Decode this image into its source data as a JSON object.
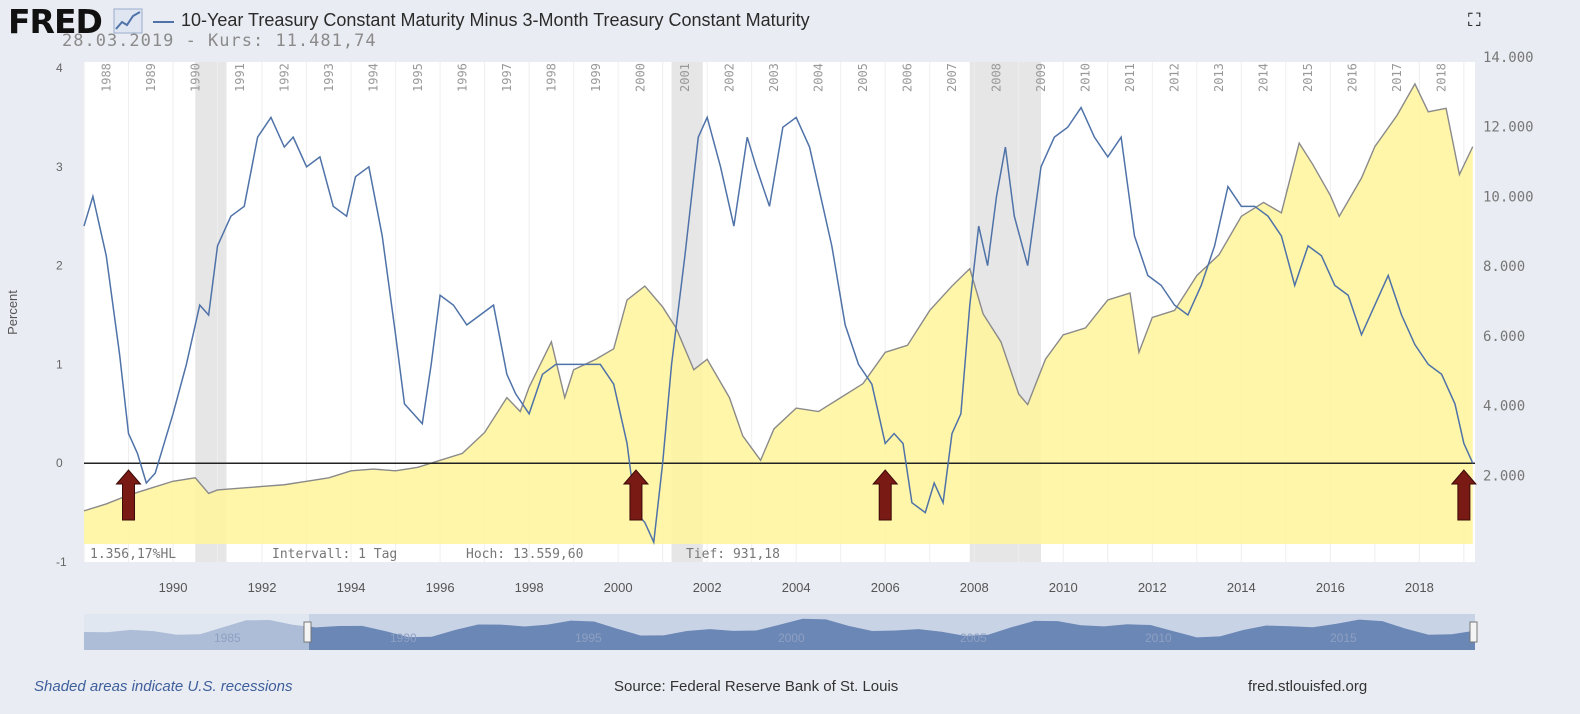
{
  "header": {
    "logo": "FRED",
    "logo_icon": "chart-trend-icon",
    "title": "10-Year Treasury Constant Maturity Minus 3-Month Treasury Constant Maturity",
    "overlay": "28.03.2019 - Kurs: 11.481,74",
    "expand_icon": "expand-icon"
  },
  "footer": {
    "left": "Shaded areas indicate U.S. recessions",
    "source": "Source: Federal Reserve Bank of St. Louis",
    "url": "fred.stlouisfed.org"
  },
  "colors": {
    "spread_line": "#4f72a8",
    "index_fill": "#fff59a",
    "index_line": "#8a8a8a",
    "arrow": "#7a1a14",
    "recession": "#e6e6e6"
  },
  "chart_data": {
    "type": "line",
    "title": "10-Year Treasury Constant Maturity Minus 3-Month Treasury Constant Maturity",
    "ylabel": "Percent",
    "ylim": [
      -1,
      4
    ],
    "y_ticks": [
      "4",
      "3",
      "2",
      "1",
      "0",
      "-1"
    ],
    "xlim": [
      1988.0,
      2019.25
    ],
    "x_ticks": [
      "1990",
      "1992",
      "1994",
      "1996",
      "1998",
      "2000",
      "2002",
      "2004",
      "2006",
      "2008",
      "2010",
      "2012",
      "2014",
      "2016",
      "2018"
    ],
    "top_year_labels": [
      "1988",
      "1989",
      "1990",
      "1991",
      "1992",
      "1993",
      "1994",
      "1995",
      "1996",
      "1997",
      "1998",
      "1999",
      "2000",
      "2001",
      "2002",
      "2003",
      "2004",
      "2005",
      "2006",
      "2007",
      "2008",
      "2009",
      "2010",
      "2011",
      "2012",
      "2013",
      "2014",
      "2015",
      "2016",
      "2017",
      "2018"
    ],
    "right_axis": {
      "ylim": [
        0,
        14000
      ],
      "ticks": [
        "14.000",
        "12.000",
        "10.000",
        "8.000",
        "6.000",
        "4.000",
        "2.000"
      ]
    },
    "recessions": [
      [
        1990.5,
        1991.2
      ],
      [
        2001.2,
        2001.9
      ],
      [
        2007.9,
        2009.5
      ]
    ],
    "series": [
      {
        "name": "10-Year Treasury Constant Maturity Minus 3-Month Treasury Constant Maturity",
        "axis": "left",
        "x": [
          1988.0,
          1988.2,
          1988.5,
          1988.8,
          1989.0,
          1989.2,
          1989.4,
          1989.6,
          1989.8,
          1990.0,
          1990.3,
          1990.6,
          1990.8,
          1991.0,
          1991.3,
          1991.6,
          1991.9,
          1992.2,
          1992.5,
          1992.7,
          1993.0,
          1993.3,
          1993.6,
          1993.9,
          1994.1,
          1994.4,
          1994.7,
          1995.0,
          1995.2,
          1995.4,
          1995.6,
          1995.8,
          1996.0,
          1996.3,
          1996.6,
          1996.9,
          1997.2,
          1997.5,
          1997.7,
          1998.0,
          1998.3,
          1998.6,
          1998.8,
          1999.0,
          1999.3,
          1999.6,
          1999.9,
          2000.2,
          2000.4,
          2000.6,
          2000.8,
          2001.0,
          2001.2,
          2001.5,
          2001.8,
          2002.0,
          2002.3,
          2002.6,
          2002.9,
          2003.1,
          2003.4,
          2003.7,
          2004.0,
          2004.3,
          2004.5,
          2004.8,
          2005.1,
          2005.4,
          2005.7,
          2006.0,
          2006.2,
          2006.4,
          2006.6,
          2006.9,
          2007.1,
          2007.3,
          2007.5,
          2007.7,
          2007.9,
          2008.1,
          2008.3,
          2008.5,
          2008.7,
          2008.9,
          2009.2,
          2009.5,
          2009.8,
          2010.1,
          2010.4,
          2010.7,
          2011.0,
          2011.3,
          2011.6,
          2011.9,
          2012.2,
          2012.5,
          2012.8,
          2013.1,
          2013.4,
          2013.7,
          2014.0,
          2014.3,
          2014.6,
          2014.9,
          2015.2,
          2015.5,
          2015.8,
          2016.1,
          2016.4,
          2016.7,
          2017.0,
          2017.3,
          2017.6,
          2017.9,
          2018.2,
          2018.5,
          2018.8,
          2019.0,
          2019.2
        ],
        "y": [
          2.4,
          2.7,
          2.1,
          1.1,
          0.3,
          0.1,
          -0.2,
          -0.1,
          0.2,
          0.5,
          1.0,
          1.6,
          1.5,
          2.2,
          2.5,
          2.6,
          3.3,
          3.5,
          3.2,
          3.3,
          3.0,
          3.1,
          2.6,
          2.5,
          2.9,
          3.0,
          2.3,
          1.3,
          0.6,
          0.5,
          0.4,
          1.0,
          1.7,
          1.6,
          1.4,
          1.5,
          1.6,
          0.9,
          0.7,
          0.5,
          0.9,
          1.0,
          1.0,
          1.0,
          1.0,
          1.0,
          0.8,
          0.2,
          -0.5,
          -0.6,
          -0.8,
          0.0,
          1.0,
          2.1,
          3.3,
          3.5,
          3.0,
          2.4,
          3.3,
          3.0,
          2.6,
          3.4,
          3.5,
          3.2,
          2.8,
          2.2,
          1.4,
          1.0,
          0.8,
          0.2,
          0.3,
          0.2,
          -0.4,
          -0.5,
          -0.2,
          -0.4,
          0.3,
          0.5,
          1.6,
          2.4,
          2.0,
          2.7,
          3.2,
          2.5,
          2.0,
          3.0,
          3.3,
          3.4,
          3.6,
          3.3,
          3.1,
          3.3,
          2.3,
          1.9,
          1.8,
          1.6,
          1.5,
          1.8,
          2.2,
          2.8,
          2.6,
          2.6,
          2.5,
          2.3,
          1.8,
          2.2,
          2.1,
          1.8,
          1.7,
          1.3,
          1.6,
          1.9,
          1.5,
          1.2,
          1.0,
          0.9,
          0.6,
          0.2,
          0.0
        ]
      },
      {
        "name": "DAX",
        "axis": "right",
        "x": [
          1988.0,
          1988.5,
          1989.0,
          1989.5,
          1990.0,
          1990.5,
          1990.8,
          1991.0,
          1991.5,
          1992.0,
          1992.5,
          1993.0,
          1993.5,
          1994.0,
          1994.5,
          1995.0,
          1995.5,
          1996.0,
          1996.5,
          1997.0,
          1997.5,
          1997.8,
          1998.0,
          1998.5,
          1998.8,
          1999.0,
          1999.5,
          1999.9,
          2000.2,
          2000.6,
          2001.0,
          2001.3,
          2001.7,
          2002.0,
          2002.5,
          2002.8,
          2003.2,
          2003.5,
          2004.0,
          2004.5,
          2005.0,
          2005.5,
          2006.0,
          2006.5,
          2007.0,
          2007.5,
          2007.9,
          2008.2,
          2008.6,
          2009.0,
          2009.2,
          2009.6,
          2010.0,
          2010.5,
          2011.0,
          2011.5,
          2011.7,
          2012.0,
          2012.5,
          2013.0,
          2013.5,
          2014.0,
          2014.5,
          2014.9,
          2015.3,
          2015.6,
          2016.0,
          2016.2,
          2016.7,
          2017.0,
          2017.5,
          2017.9,
          2018.2,
          2018.6,
          2018.9,
          2019.2
        ],
        "y": [
          950,
          1150,
          1400,
          1600,
          1800,
          1900,
          1450,
          1550,
          1600,
          1650,
          1700,
          1800,
          1900,
          2100,
          2150,
          2100,
          2200,
          2400,
          2600,
          3200,
          4200,
          3800,
          4500,
          5800,
          4200,
          5000,
          5300,
          5600,
          7000,
          7400,
          6800,
          6200,
          5000,
          5300,
          4200,
          3100,
          2400,
          3300,
          3900,
          3800,
          4200,
          4600,
          5500,
          5700,
          6700,
          7400,
          7900,
          6600,
          5800,
          4300,
          4000,
          5300,
          6000,
          6200,
          7000,
          7200,
          5500,
          6500,
          6700,
          7700,
          8300,
          9400,
          9800,
          9500,
          11500,
          10900,
          10000,
          9400,
          10500,
          11400,
          12300,
          13200,
          12400,
          12500,
          10600,
          11400
        ]
      }
    ],
    "annotations": [
      "1.356,17%HL",
      "Intervall: 1 Tag",
      "Hoch: 13.559,60",
      "Tief: 931,18"
    ],
    "arrows_at": [
      1989.0,
      2000.4,
      2006.0,
      2019.0
    ],
    "navigator_labels": [
      "1985",
      "1990",
      "1995",
      "2000",
      "2005",
      "2010",
      "2015"
    ]
  }
}
